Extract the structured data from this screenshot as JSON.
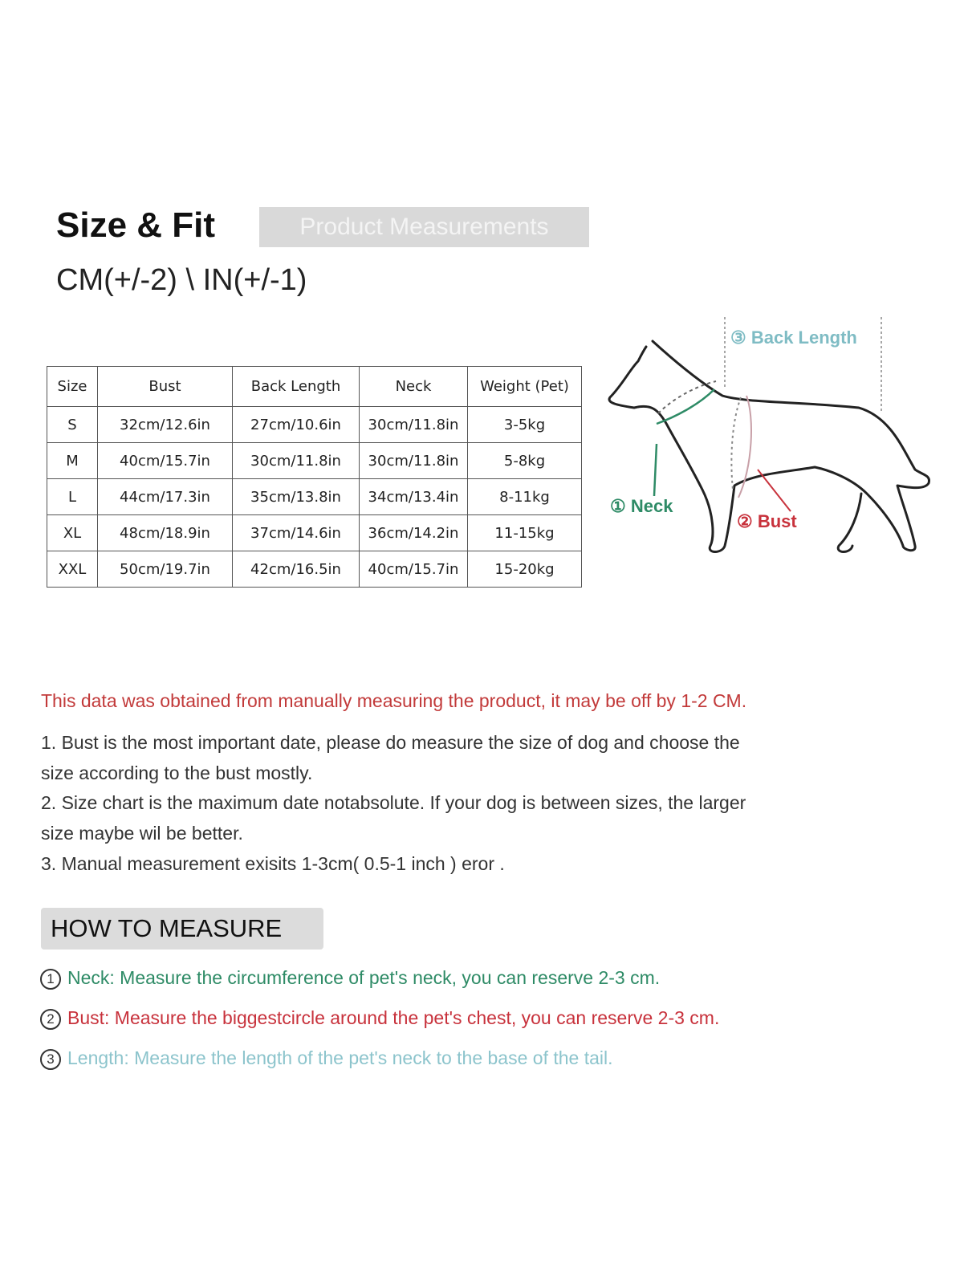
{
  "header": {
    "title": "Size & Fit",
    "badge": "Product Measurements",
    "units": "CM(+/-2) \\ IN(+/-1)"
  },
  "table": {
    "headers": [
      "Size",
      "Bust",
      "Back Length",
      "Neck",
      "Weight (Pet)"
    ],
    "rows": [
      [
        "S",
        "32cm/12.6in",
        "27cm/10.6in",
        "30cm/11.8in",
        "3-5kg"
      ],
      [
        "M",
        "40cm/15.7in",
        "30cm/11.8in",
        "30cm/11.8in",
        "5-8kg"
      ],
      [
        "L",
        "44cm/17.3in",
        "35cm/13.8in",
        "34cm/13.4in",
        "8-11kg"
      ],
      [
        "XL",
        "48cm/18.9in",
        "37cm/14.6in",
        "36cm/14.2in",
        "11-15kg"
      ],
      [
        "XXL",
        "50cm/19.7in",
        "42cm/16.5in",
        "40cm/15.7in",
        "15-20kg"
      ]
    ]
  },
  "diagram": {
    "neck": "① Neck",
    "bust": "② Bust",
    "back": "③ Back Length"
  },
  "notes": {
    "red": "This data was obtained from manually measuring the product, it may be off by 1-2 CM.",
    "n1a": "1. Bust is the most important date, please do measure the size of dog and choose the",
    "n1b": "size according to the bust mostly.",
    "n2a": "2. Size chart is the maximum date notabsolute. If your dog is between sizes, the larger",
    "n2b": "size maybe wil be better.",
    "n3": "3. Manual measurement exisits 1-3cm( 0.5-1 inch ) eror ."
  },
  "how": {
    "title": "HOW TO MEASURE",
    "steps": [
      {
        "num": "1",
        "text": "Neck: Measure the circumference of pet's neck, you can reserve 2-3 cm."
      },
      {
        "num": "2",
        "text": "Bust:  Measure the biggestcircle around the pet's chest, you can reserve 2-3 cm."
      },
      {
        "num": "3",
        "text": "Length: Measure the length of the pet's neck to the base of the tail."
      }
    ]
  },
  "colors": {
    "neck": "#2e8b66",
    "bust": "#c8323c",
    "back": "#7fbcc4",
    "note_red": "#c23a3a"
  }
}
